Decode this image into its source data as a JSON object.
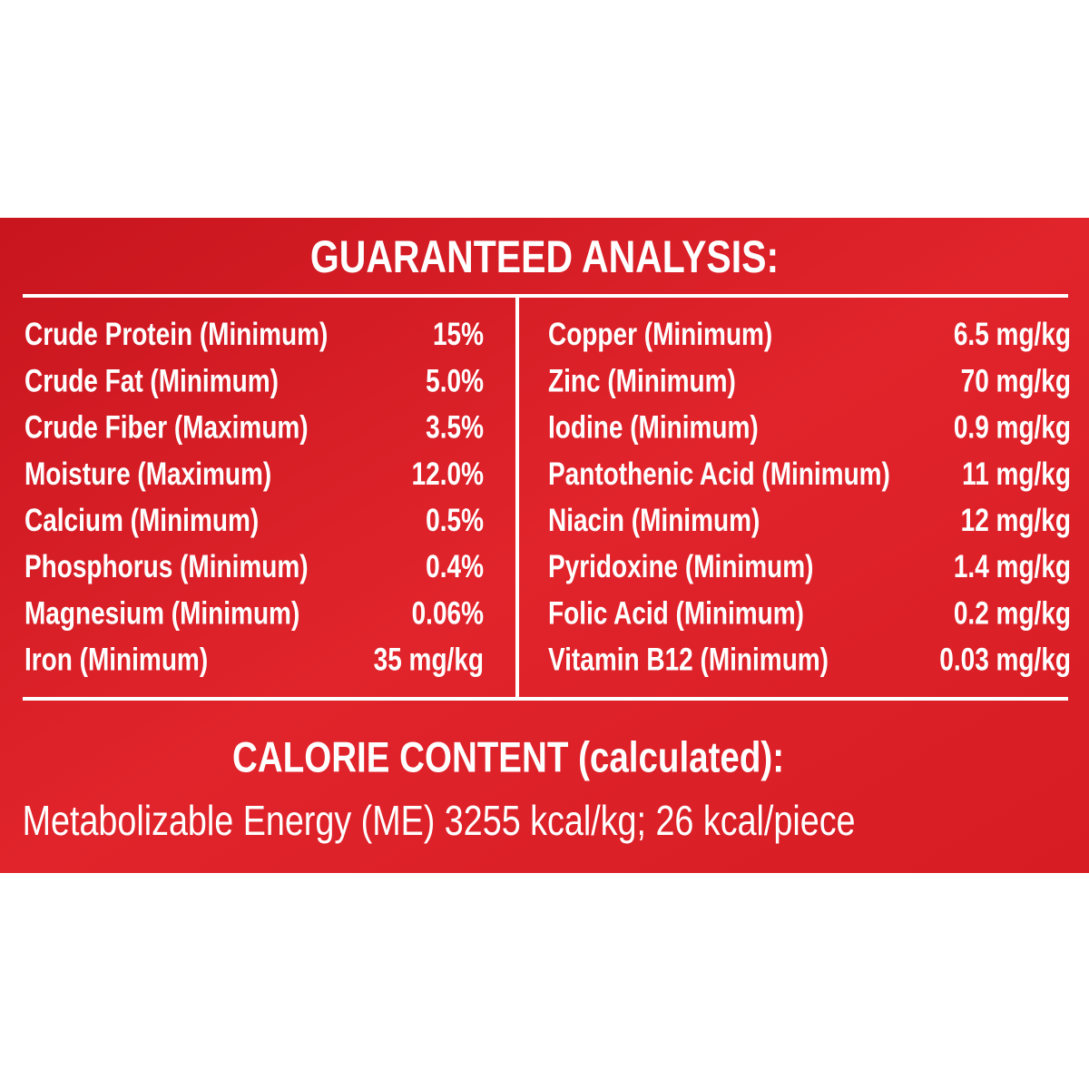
{
  "header": {
    "title": "GUARANTEED ANALYSIS:"
  },
  "left": [
    {
      "label": "Crude Protein (Minimum)",
      "value": "15%"
    },
    {
      "label": "Crude Fat (Minimum)",
      "value": "5.0%"
    },
    {
      "label": "Crude Fiber (Maximum)",
      "value": "3.5%"
    },
    {
      "label": "Moisture (Maximum)",
      "value": "12.0%"
    },
    {
      "label": "Calcium (Minimum)",
      "value": "0.5%"
    },
    {
      "label": "Phosphorus (Minimum)",
      "value": "0.4%"
    },
    {
      "label": "Magnesium (Minimum)",
      "value": "0.06%"
    },
    {
      "label": "Iron (Minimum)",
      "value": "35 mg/kg"
    }
  ],
  "right": [
    {
      "label": "Copper (Minimum)",
      "value": "6.5 mg/kg"
    },
    {
      "label": "Zinc (Minimum)",
      "value": "70 mg/kg"
    },
    {
      "label": "Iodine (Minimum)",
      "value": "0.9 mg/kg"
    },
    {
      "label": "Pantothenic Acid (Minimum)",
      "value": "11 mg/kg"
    },
    {
      "label": "Niacin (Minimum)",
      "value": "12 mg/kg"
    },
    {
      "label": "Pyridoxine (Minimum)",
      "value": "1.4 mg/kg"
    },
    {
      "label": "Folic Acid (Minimum)",
      "value": "0.2 mg/kg"
    },
    {
      "label": "Vitamin B12 (Minimum)",
      "value": "0.03 mg/kg"
    }
  ],
  "calorie": {
    "heading": "CALORIE CONTENT (calculated):",
    "text": "Metabolizable Energy (ME) 3255 kcal/kg; 26 kcal/piece"
  }
}
